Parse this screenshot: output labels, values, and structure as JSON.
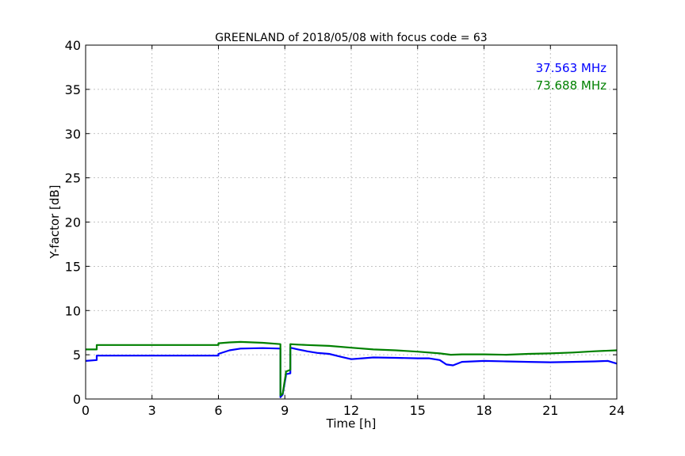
{
  "chart_data": {
    "type": "line",
    "title": "GREENLAND of 2018/05/08 with focus code = 63",
    "xlabel": "Time [h]",
    "ylabel": "Y-factor [dB]",
    "xlim": [
      0,
      24
    ],
    "ylim": [
      0,
      40
    ],
    "xticks": [
      0,
      3,
      6,
      9,
      12,
      15,
      18,
      21,
      24
    ],
    "yticks": [
      0,
      5,
      10,
      15,
      20,
      25,
      30,
      35,
      40
    ],
    "grid": true,
    "legend_placement": "top-right",
    "series": [
      {
        "name": "37.563 MHz",
        "color": "#0000ff",
        "x": [
          0,
          0.5,
          0.5,
          6.0,
          6.0,
          6.5,
          7.0,
          8.0,
          8.8,
          8.8,
          8.9,
          9.05,
          9.05,
          9.25,
          9.25,
          9.6,
          10.0,
          10.5,
          11.0,
          11.5,
          12.0,
          12.5,
          13.0,
          14.0,
          15.0,
          15.5,
          16.0,
          16.3,
          16.6,
          17.0,
          18.0,
          19.0,
          20.0,
          21.0,
          22.0,
          23.0,
          23.6,
          24.0
        ],
        "y": [
          4.3,
          4.4,
          4.9,
          4.9,
          5.1,
          5.5,
          5.7,
          5.75,
          5.7,
          0.2,
          0.5,
          2.6,
          2.8,
          2.9,
          5.8,
          5.6,
          5.4,
          5.2,
          5.1,
          4.8,
          4.5,
          4.6,
          4.7,
          4.65,
          4.6,
          4.6,
          4.4,
          3.9,
          3.8,
          4.2,
          4.3,
          4.25,
          4.2,
          4.15,
          4.2,
          4.25,
          4.3,
          4.0
        ]
      },
      {
        "name": "73.688 MHz",
        "color": "#008000",
        "x": [
          0,
          0.5,
          0.5,
          6.0,
          6.0,
          6.5,
          7.0,
          8.0,
          8.8,
          8.8,
          8.9,
          9.05,
          9.05,
          9.25,
          9.25,
          9.6,
          10.0,
          11.0,
          12.0,
          13.0,
          14.0,
          15.0,
          16.0,
          16.5,
          17.0,
          18.0,
          19.0,
          20.0,
          21.0,
          22.0,
          23.0,
          24.0
        ],
        "y": [
          5.6,
          5.6,
          6.1,
          6.1,
          6.3,
          6.4,
          6.45,
          6.35,
          6.2,
          0.4,
          0.6,
          2.9,
          3.1,
          3.3,
          6.2,
          6.15,
          6.1,
          6.0,
          5.8,
          5.6,
          5.5,
          5.35,
          5.15,
          5.0,
          5.05,
          5.05,
          5.0,
          5.1,
          5.15,
          5.25,
          5.4,
          5.5
        ]
      }
    ]
  }
}
